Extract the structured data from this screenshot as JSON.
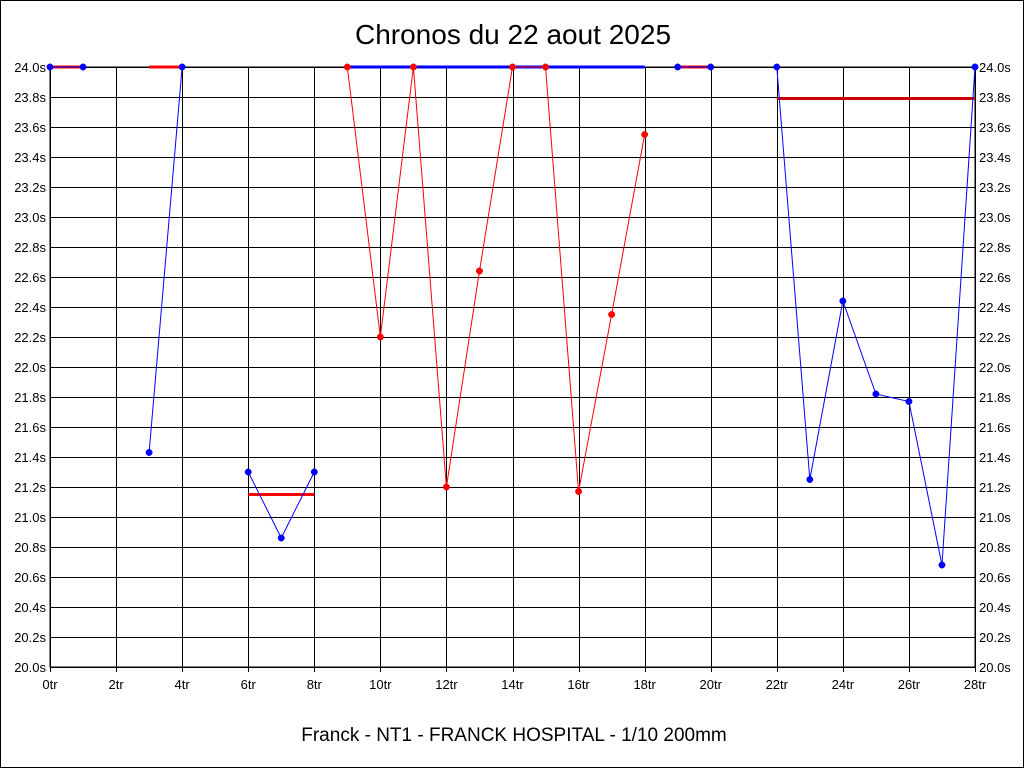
{
  "chart_data": {
    "type": "line",
    "title": "Chronos du 22 aout 2025",
    "footer": "Franck - NT1 - FRANCK HOSPITAL - 1/10 200mm",
    "xlabel": "",
    "ylabel": "",
    "xlim": [
      0,
      28
    ],
    "ylim": [
      20.0,
      24.0
    ],
    "x_ticks": [
      0,
      2,
      4,
      6,
      8,
      10,
      12,
      14,
      16,
      18,
      20,
      22,
      24,
      26,
      28
    ],
    "x_tick_labels": [
      "0tr",
      "2tr",
      "4tr",
      "6tr",
      "8tr",
      "10tr",
      "12tr",
      "14tr",
      "16tr",
      "18tr",
      "20tr",
      "22tr",
      "24tr",
      "26tr",
      "28tr"
    ],
    "y_ticks": [
      20.0,
      20.2,
      20.4,
      20.6,
      20.8,
      21.0,
      21.2,
      21.4,
      21.6,
      21.8,
      22.0,
      22.2,
      22.4,
      22.6,
      22.8,
      23.0,
      23.2,
      23.4,
      23.6,
      23.8,
      24.0
    ],
    "y_tick_labels": [
      "20.0s",
      "20.2s",
      "20.4s",
      "20.6s",
      "20.8s",
      "21.0s",
      "21.2s",
      "21.4s",
      "21.6s",
      "21.8s",
      "22.0s",
      "22.2s",
      "22.4s",
      "22.6s",
      "22.8s",
      "23.0s",
      "23.2s",
      "23.4s",
      "23.6s",
      "23.8s",
      "24.0s"
    ],
    "y_axis_sides": [
      "left",
      "right"
    ],
    "grid": true,
    "colors": {
      "blue": "#0000ff",
      "red": "#ff0000",
      "darkred": "#cc0000",
      "grid": "#000000"
    },
    "segments": [
      {
        "color": "blue",
        "points": [
          [
            0,
            24.0
          ],
          [
            1,
            24.0
          ]
        ]
      },
      {
        "color": "blue",
        "points": [
          [
            3,
            21.43
          ],
          [
            4,
            24.0
          ]
        ]
      },
      {
        "color": "blue",
        "points": [
          [
            6,
            21.3
          ],
          [
            7,
            20.86
          ],
          [
            8,
            21.3
          ]
        ]
      },
      {
        "color": "red",
        "points": [
          [
            9,
            24.0
          ],
          [
            10,
            22.2
          ],
          [
            11,
            24.0
          ],
          [
            12,
            21.2
          ],
          [
            13,
            22.64
          ],
          [
            14,
            24.0
          ],
          [
            15,
            24.0
          ],
          [
            16,
            21.17
          ],
          [
            17,
            22.35
          ],
          [
            18,
            23.55
          ]
        ]
      },
      {
        "color": "blue",
        "points": [
          [
            19,
            24.0
          ],
          [
            20,
            24.0
          ]
        ]
      },
      {
        "color": "blue",
        "points": [
          [
            22,
            24.0
          ],
          [
            23,
            21.25
          ],
          [
            24,
            22.44
          ],
          [
            25,
            21.82
          ],
          [
            26,
            21.77
          ],
          [
            27,
            20.68
          ],
          [
            28,
            24.0
          ]
        ]
      }
    ],
    "average_lines": [
      {
        "color": "red",
        "x": [
          0,
          1
        ],
        "y": 24.0
      },
      {
        "color": "red",
        "x": [
          3,
          4
        ],
        "y": 24.0
      },
      {
        "color": "red",
        "x": [
          6,
          8
        ],
        "y": 21.15
      },
      {
        "color": "blue",
        "x": [
          9,
          18
        ],
        "y": 24.0
      },
      {
        "color": "red",
        "x": [
          19,
          20
        ],
        "y": 24.0
      },
      {
        "color": "darkred",
        "x": [
          22,
          28
        ],
        "y": 23.79
      }
    ]
  }
}
